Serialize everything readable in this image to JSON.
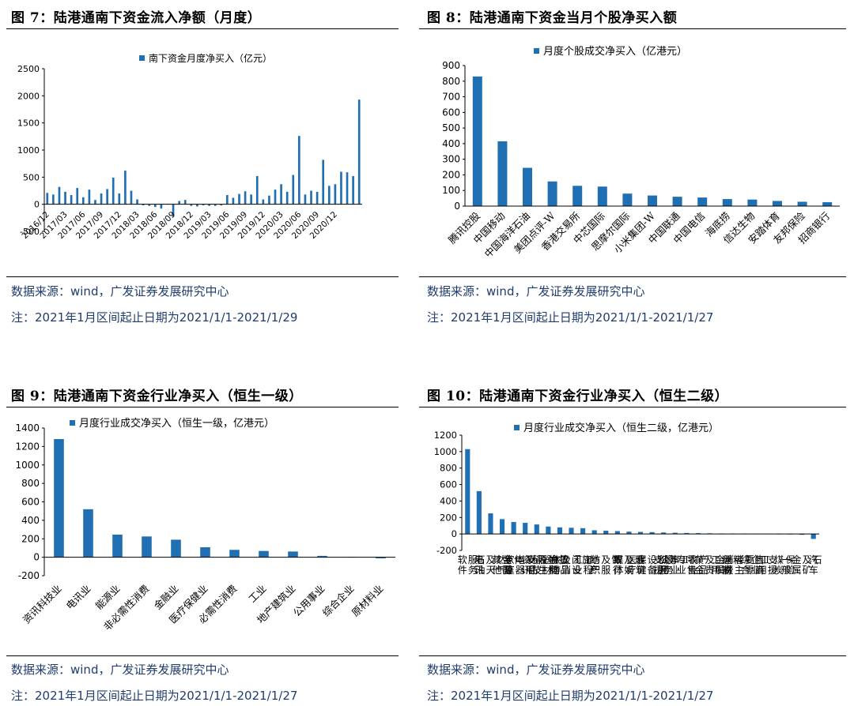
{
  "theme": {
    "bar_color": "#1f6fb2",
    "note_color": "#1f3c6e"
  },
  "fig7": {
    "title": "图 7：陆港通南下资金流入净额（月度）",
    "source": "数据来源：wind，广发证券发展研究中心",
    "note": "注：2021年1月区间起止日期为2021/1/1-2021/1/29",
    "chart_data": {
      "type": "bar",
      "series": [
        {
          "name": "南下资金月度净买入（亿元）",
          "values": [
            210,
            180,
            320,
            230,
            170,
            300,
            130,
            270,
            80,
            200,
            280,
            490,
            200,
            620,
            250,
            90,
            -20,
            -30,
            -50,
            -80,
            10,
            -230,
            60,
            80,
            -30,
            -40,
            -20,
            -30,
            -30,
            -20,
            170,
            120,
            190,
            240,
            180,
            520,
            90,
            160,
            270,
            370,
            230,
            540,
            1260,
            180,
            250,
            230,
            820,
            340,
            370,
            600,
            590,
            520,
            1930
          ]
        }
      ],
      "x_tick_labels": [
        "2016/12",
        "2017/03",
        "2017/06",
        "2017/09",
        "2017/12",
        "2018/03",
        "2018/06",
        "2018/09",
        "2018/12",
        "2019/03",
        "2019/06",
        "2019/09",
        "2019/12",
        "2020/03",
        "2020/06",
        "2020/09",
        "2020/12"
      ],
      "y_ticks": [
        -500,
        0,
        500,
        1000,
        1500,
        2000,
        2500
      ],
      "ylim": [
        -500,
        2500
      ],
      "legend_position": "top"
    }
  },
  "fig8": {
    "title": "图 8：陆港通南下资金当月个股净买入额",
    "source": "数据来源：wind，广发证券发展研究中心",
    "note": "注：2021年1月区间起止日期为2021/1/1-2021/1/27",
    "chart_data": {
      "type": "bar",
      "categories": [
        "腾讯控股",
        "中国移动",
        "中国海洋石油",
        "美团点评-W",
        "香港交易所",
        "中芯国际",
        "思摩尔国际",
        "小米集团-W",
        "中国联通",
        "中国电信",
        "海底捞",
        "信达生物",
        "安踏体育",
        "友邦保险",
        "招商银行"
      ],
      "series": [
        {
          "name": "月度个股成交净买入（亿港元）",
          "values": [
            830,
            415,
            245,
            158,
            130,
            125,
            80,
            68,
            60,
            55,
            45,
            42,
            33,
            28,
            25
          ]
        }
      ],
      "y_ticks": [
        0,
        100,
        200,
        300,
        400,
        500,
        600,
        700,
        800,
        900
      ],
      "ylim": [
        0,
        900
      ],
      "legend_position": "top"
    }
  },
  "fig9": {
    "title": "图 9：陆港通南下资金行业净买入（恒生一级）",
    "source": "数据来源：wind，广发证券发展研究中心",
    "note": "注：2021年1月区间起止日期为2021/1/1-2021/1/27",
    "chart_data": {
      "type": "bar",
      "categories": [
        "资讯科技业",
        "电讯业",
        "能源业",
        "非必需性消费",
        "金融业",
        "医疗保健业",
        "必需性消费",
        "工业",
        "地产建筑业",
        "公用事业",
        "综合企业",
        "原材料业"
      ],
      "series": [
        {
          "name": "月度行业成交净买入（恒生一级，亿港元）",
          "values": [
            1280,
            520,
            245,
            225,
            190,
            108,
            80,
            68,
            62,
            15,
            3,
            -12
          ]
        }
      ],
      "y_ticks": [
        -200,
        0,
        200,
        400,
        600,
        800,
        1000,
        1200,
        1400
      ],
      "ylim": [
        -200,
        1400
      ],
      "legend_position": "top"
    }
  },
  "fig10": {
    "title": "图 10：陆港通南下资金行业净买入（恒生二级）",
    "source": "数据来源：wind，广发证券发展研究中心",
    "note": "注：2021年1月区间起止日期为2021/1/1-2021/1/27",
    "chart_data": {
      "type": "bar",
      "categories": [
        "软件服务",
        "电讯",
        "石油及天然气",
        "其他金融",
        "半导体",
        "家庭电器及用品",
        "资讯科技器材",
        "药品及生物科技",
        "食物饮品",
        "旅游及消闲设施",
        "工业工程",
        "地产",
        "纺织及服饰",
        "银行",
        "媒体及娱乐",
        "建筑",
        "医疗保健设备和服务",
        "支援服务",
        "公用事业Ⅱ",
        "专业零售",
        "农业产品",
        "黄金及贵金属",
        "工用运输",
        "原材料",
        "消费者主要零售商",
        "综合企业Ⅱ",
        "工用支援",
        "煤炭",
        "保险",
        "一般金属及矿石",
        "汽车"
      ],
      "series": [
        {
          "name": "月度行业成交净买入（恒生二级，亿港元）",
          "values": [
            1030,
            520,
            250,
            180,
            145,
            135,
            115,
            90,
            80,
            75,
            70,
            45,
            40,
            35,
            28,
            25,
            22,
            18,
            15,
            12,
            10,
            8,
            6,
            5,
            4,
            3,
            2,
            1,
            -5,
            -10,
            -60
          ]
        }
      ],
      "y_ticks": [
        -200,
        0,
        200,
        400,
        600,
        800,
        1000,
        1200
      ],
      "ylim": [
        -200,
        1200
      ],
      "legend_position": "top"
    }
  }
}
